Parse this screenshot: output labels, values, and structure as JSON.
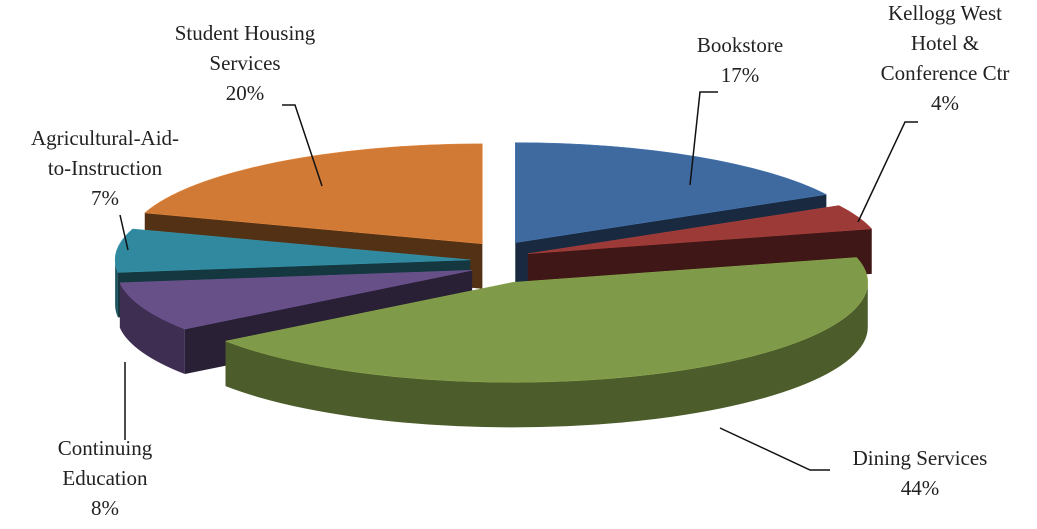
{
  "chart_data": {
    "type": "pie3d",
    "categories": [
      "Bookstore",
      "Kellogg West\nHotel &\nConference Ctr",
      "Dining Services",
      "Continuing\nEducation",
      "Agricultural-Aid-\nto-Instruction",
      "Student Housing\nServices"
    ],
    "values": [
      17,
      4,
      44,
      8,
      7,
      20
    ],
    "value_labels": [
      "17%",
      "4%",
      "44%",
      "8%",
      "7%",
      "20%"
    ],
    "colors": [
      "#3e6aa0",
      "#9b3a37",
      "#7f9a48",
      "#674f88",
      "#31899f",
      "#d07a35"
    ]
  }
}
